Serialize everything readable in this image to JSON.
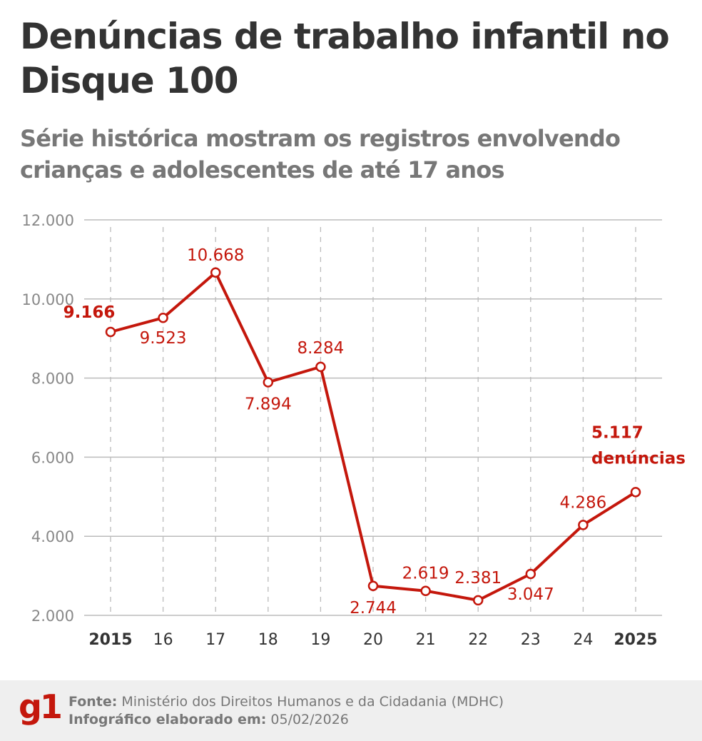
{
  "title": "Denúncias de trabalho infantil no Disque 100",
  "subtitle": "Série histórica mostram os registros envolvendo crianças e adolescentes de até 17 anos",
  "colors": {
    "line": "#c4170c",
    "grid": "#bbbbbb",
    "axis_text": "#888888",
    "title": "#333333"
  },
  "chart_data": {
    "type": "line",
    "categories": [
      "2015",
      "16",
      "17",
      "18",
      "19",
      "20",
      "21",
      "22",
      "23",
      "24",
      "2025"
    ],
    "series": [
      {
        "values": [
          9166,
          9523,
          10668,
          7894,
          8284,
          2744,
          2619,
          2381,
          3047,
          4286,
          5117
        ]
      }
    ],
    "data_labels": [
      "9.166",
      "9.523",
      "10.668",
      "7.894",
      "8.284",
      "2.744",
      "2.619",
      "2.381",
      "3.047",
      "4.286",
      "5.117"
    ],
    "last_label_suffix": "denúncias",
    "y_ticks": [
      "12.000",
      "10.000",
      "8.000",
      "6.000",
      "4.000",
      "2.000"
    ],
    "y_tick_values": [
      12000,
      10000,
      8000,
      6000,
      4000,
      2000
    ],
    "ylim": [
      2000,
      12000
    ],
    "grid": true
  },
  "footer": {
    "logo": "g1",
    "source_label": "Fonte:",
    "source": "Ministério dos Direitos Humanos e da Cidadania (MDHC)",
    "date_label": "Infográfico elaborado em:",
    "date": "05/02/2026"
  }
}
